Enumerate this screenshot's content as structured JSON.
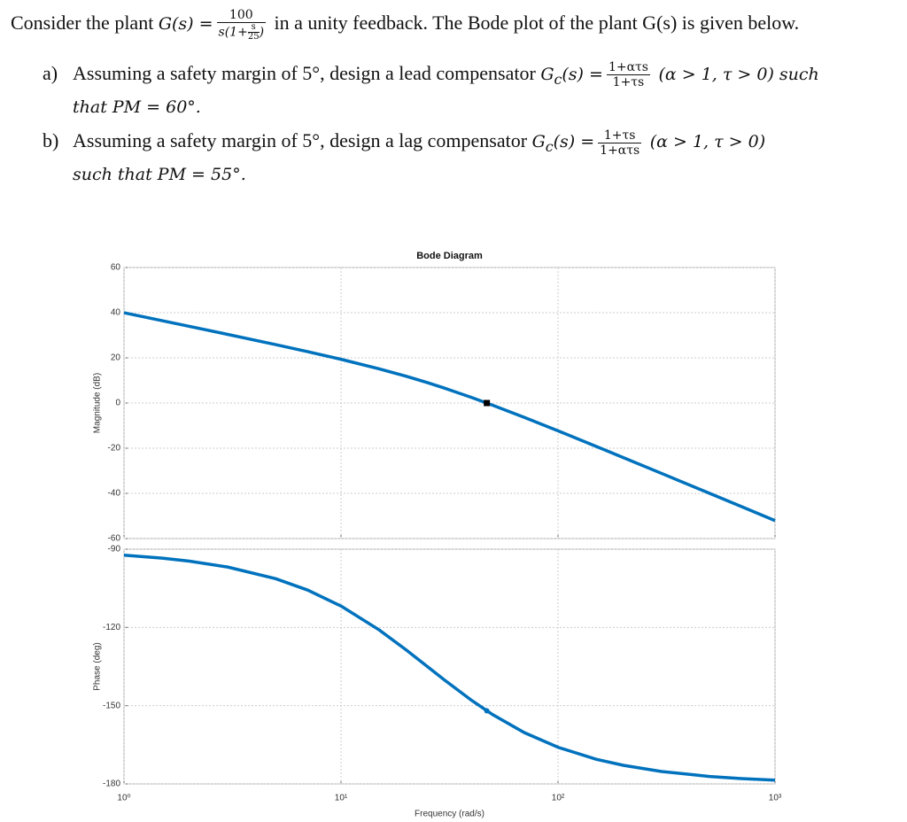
{
  "problem": {
    "intro": {
      "before": "Consider the plant",
      "lhs": "G(s) =",
      "num": "100",
      "den_before": "s(1+",
      "den_num": "s",
      "den_den": "25",
      "den_after": ")",
      "after": "in a unity feedback. The Bode plot of the plant G(s) is given below."
    },
    "items": [
      {
        "label": "a)",
        "text": "Assuming a safety margin of 5°, design a lead compensator",
        "lhs": "G",
        "sub": "c",
        "lhs_rest": "(s) =",
        "num": "1+ατs",
        "den": "1+τs",
        "cond": "(α > 1, τ > 0) such that PM = 60°."
      },
      {
        "label": "b)",
        "text": "Assuming a safety margin of 5°, design a lag compensator",
        "lhs": "G",
        "sub": "c",
        "lhs_rest": "(s) =",
        "num": "1+τs",
        "den": "1+ατs",
        "cond": "(α > 1, τ > 0)",
        "tail": "such that PM = 55°."
      }
    ]
  },
  "chart_data": [
    {
      "type": "line",
      "title": "Bode Diagram",
      "ylabel": "Magnitude (dB)",
      "xscale": "log",
      "grid": true,
      "xtick_labels": false,
      "x": [
        1,
        1.5,
        2,
        3,
        5,
        7,
        10,
        15,
        20,
        25,
        30,
        40,
        50,
        70,
        100,
        150,
        200,
        300,
        500,
        700,
        1000
      ],
      "xlim": [
        1,
        1000
      ],
      "xticks": [
        1,
        10,
        100,
        1000
      ],
      "ylim": [
        -60,
        60
      ],
      "yticks": [
        -60,
        -40,
        -20,
        0,
        20,
        40,
        60
      ],
      "series": [
        {
          "color": "#0072bd",
          "values": [
            39.99,
            36.46,
            33.95,
            30.4,
            25.85,
            22.77,
            19.36,
            15.14,
            11.83,
            9.03,
            6.58,
            2.45,
            -0.97,
            -6.37,
            -12.3,
            -19.2,
            -24.15,
            -31.15,
            -40.01,
            -45.85,
            -52.04
          ]
        }
      ],
      "marker": {
        "x": 46.98,
        "y": 0
      }
    },
    {
      "type": "line",
      "ylabel": "Phase (deg)",
      "xlabel": "Frequency (rad/s)",
      "xscale": "log",
      "grid": true,
      "xtick_labels": true,
      "x": [
        1,
        1.5,
        2,
        3,
        5,
        7,
        10,
        15,
        20,
        25,
        30,
        40,
        50,
        70,
        100,
        150,
        200,
        300,
        500,
        700,
        1000
      ],
      "xlim": [
        1,
        1000
      ],
      "xticks": [
        {
          "value": 1,
          "label": "10⁰"
        },
        {
          "value": 10,
          "label": "10¹"
        },
        {
          "value": 100,
          "label": "10²"
        },
        {
          "value": 1000,
          "label": "10³"
        }
      ],
      "ylim": [
        -180,
        -90
      ],
      "yticks": [
        -180,
        -150,
        -120,
        -90
      ],
      "series": [
        {
          "color": "#0072bd",
          "values": [
            -92.29,
            -93.43,
            -94.57,
            -96.84,
            -101.31,
            -105.64,
            -111.8,
            -120.96,
            -128.66,
            -135,
            -140.19,
            -147.99,
            -153.43,
            -160.35,
            -165.96,
            -170.54,
            -172.87,
            -175.24,
            -177.14,
            -177.95,
            -178.57
          ]
        }
      ],
      "marker": {
        "x": 46.98,
        "y": -151.98
      }
    }
  ]
}
